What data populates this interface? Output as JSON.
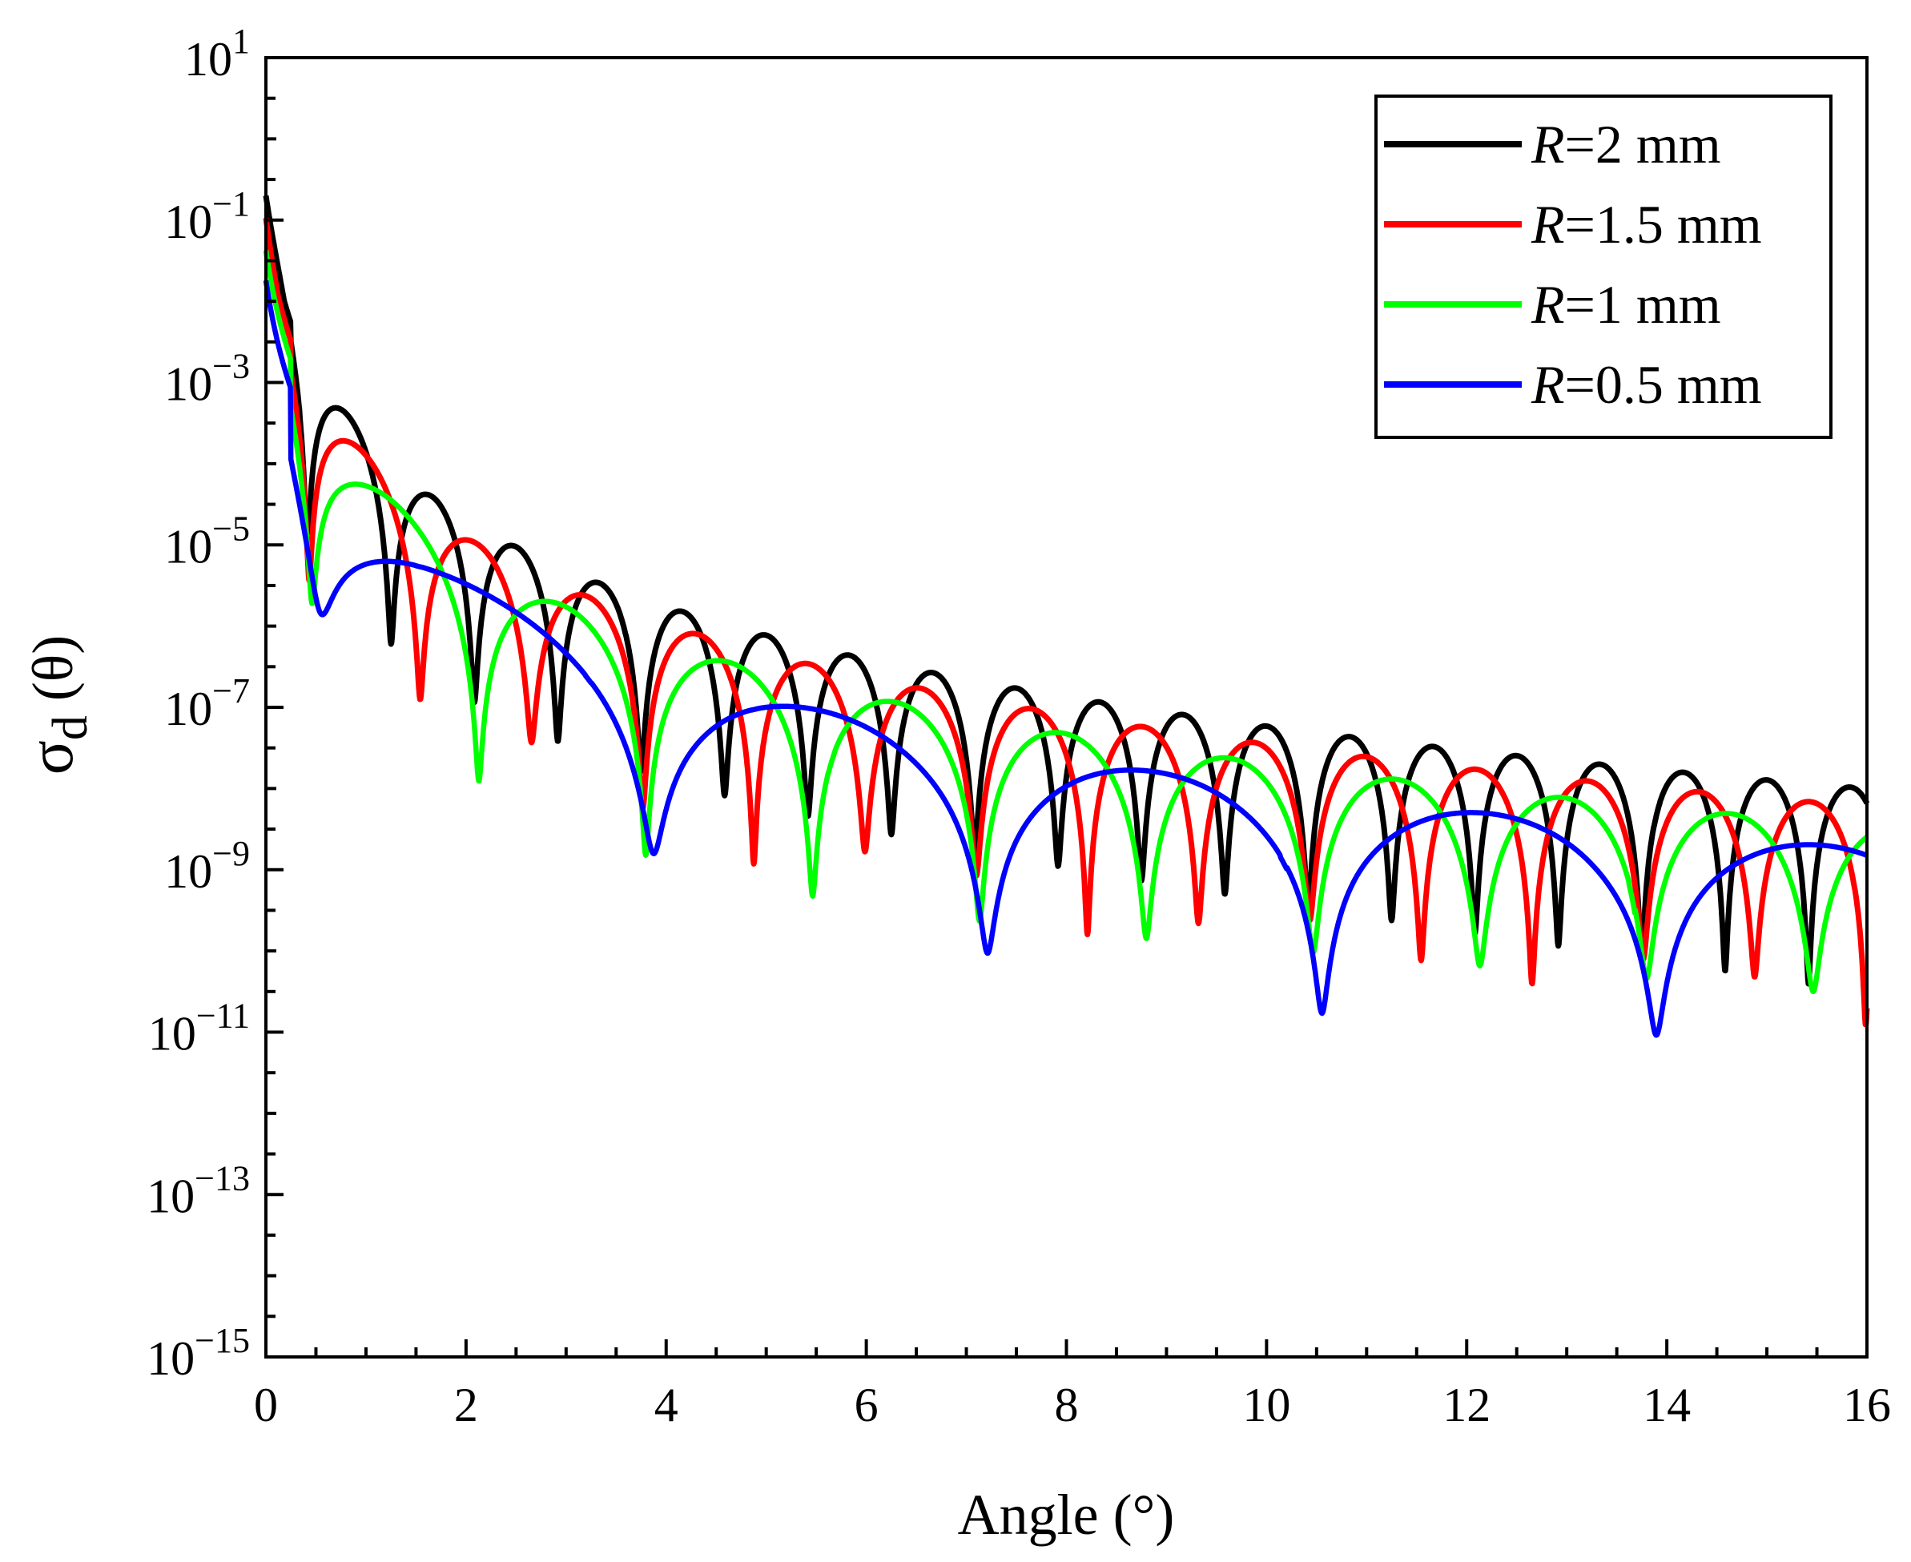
{
  "chart_data": {
    "type": "line",
    "title": "",
    "xlabel": "Angle (°)",
    "ylabel": {
      "symbol": "σ",
      "subscript": "d",
      "arg": "(θ)"
    },
    "xlim": [
      0,
      16
    ],
    "ylim": [
      1e-15,
      10
    ],
    "yscale": "log",
    "xticks": [
      "0",
      "2",
      "4",
      "6",
      "8",
      "10",
      "12",
      "14",
      "16"
    ],
    "yticks": [
      {
        "base": "10",
        "exp": "1"
      },
      {
        "base": "10",
        "exp": "−1"
      },
      {
        "base": "10",
        "exp": "−3"
      },
      {
        "base": "10",
        "exp": "−5"
      },
      {
        "base": "10",
        "exp": "−7"
      },
      {
        "base": "10",
        "exp": "−9"
      },
      {
        "base": "10",
        "exp": "−11"
      },
      {
        "base": "10",
        "exp": "−13"
      },
      {
        "base": "10",
        "exp": "−15"
      }
    ],
    "grid": false,
    "legend_position": "top-right",
    "series": [
      {
        "name": "R=2 mm",
        "label_var": "R",
        "label_rest": "=2 mm",
        "color": "#000000",
        "radius_mm": 2.0,
        "peak_at_zero": 0.2,
        "envelope_at_16deg": 1e-08,
        "deep_nulls_deg": [
          0.37,
          1.77,
          3.57,
          11.9,
          13.9,
          15.3
        ]
      },
      {
        "name": "R=1.5 mm",
        "label_var": "R",
        "label_rest": "=1.5 mm",
        "color": "#ff0000",
        "radius_mm": 1.5,
        "peak_at_zero": 0.12,
        "envelope_at_16deg": 6e-09,
        "deep_nulls_deg": [
          6.45,
          12.35,
          13.05,
          15.85
        ]
      },
      {
        "name": "R=1 mm",
        "label_var": "R",
        "label_rest": "=1 mm",
        "color": "#00ff00",
        "radius_mm": 1.0,
        "peak_at_zero": 0.07,
        "envelope_at_16deg": 3.5e-09,
        "deep_nulls_deg": [
          5.65,
          9.3,
          13.65,
          14.85
        ]
      },
      {
        "name": "R=0.5 mm",
        "label_var": "R",
        "label_rest": "=0.5 mm",
        "color": "#0000ff",
        "radius_mm": 0.5,
        "peak_at_zero": 0.03,
        "envelope_at_16deg": 1.8e-09,
        "deep_nulls_deg": [
          1.52,
          3.22,
          4.88,
          8.03,
          10.17,
          12.75
        ]
      }
    ]
  }
}
